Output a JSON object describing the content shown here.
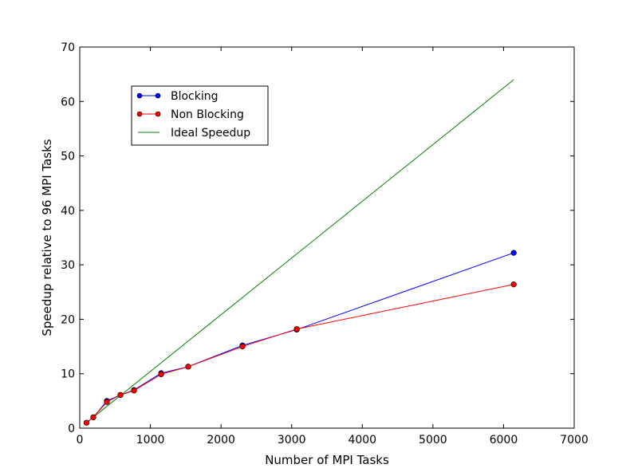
{
  "chart_data": {
    "type": "line",
    "xlabel": "Number of MPI Tasks",
    "ylabel": "Speedup relative to 96 MPI Tasks",
    "xlim": [
      0,
      7000
    ],
    "ylim": [
      0,
      70
    ],
    "xticks": [
      0,
      1000,
      2000,
      3000,
      4000,
      5000,
      6000,
      7000
    ],
    "yticks": [
      0,
      10,
      20,
      30,
      40,
      50,
      60,
      70
    ],
    "grid": false,
    "legend_position": "upper-left",
    "series": [
      {
        "name": "Blocking",
        "color": "#0000ff",
        "marker": "circle",
        "x": [
          96,
          192,
          384,
          576,
          768,
          1152,
          1536,
          2304,
          3072,
          6144
        ],
        "y": [
          1.0,
          2.0,
          5.0,
          6.1,
          7.0,
          10.1,
          11.3,
          15.2,
          18.1,
          32.2
        ]
      },
      {
        "name": "Non Blocking",
        "color": "#ff0000",
        "marker": "circle",
        "x": [
          96,
          192,
          384,
          576,
          768,
          1152,
          1536,
          2304,
          3072,
          6144
        ],
        "y": [
          1.0,
          2.0,
          4.8,
          6.1,
          6.9,
          9.9,
          11.3,
          15.0,
          18.2,
          26.4
        ]
      },
      {
        "name": "Ideal Speedup",
        "color": "#008000",
        "marker": "none",
        "x": [
          96,
          6144
        ],
        "y": [
          1.0,
          64.0
        ]
      }
    ]
  }
}
